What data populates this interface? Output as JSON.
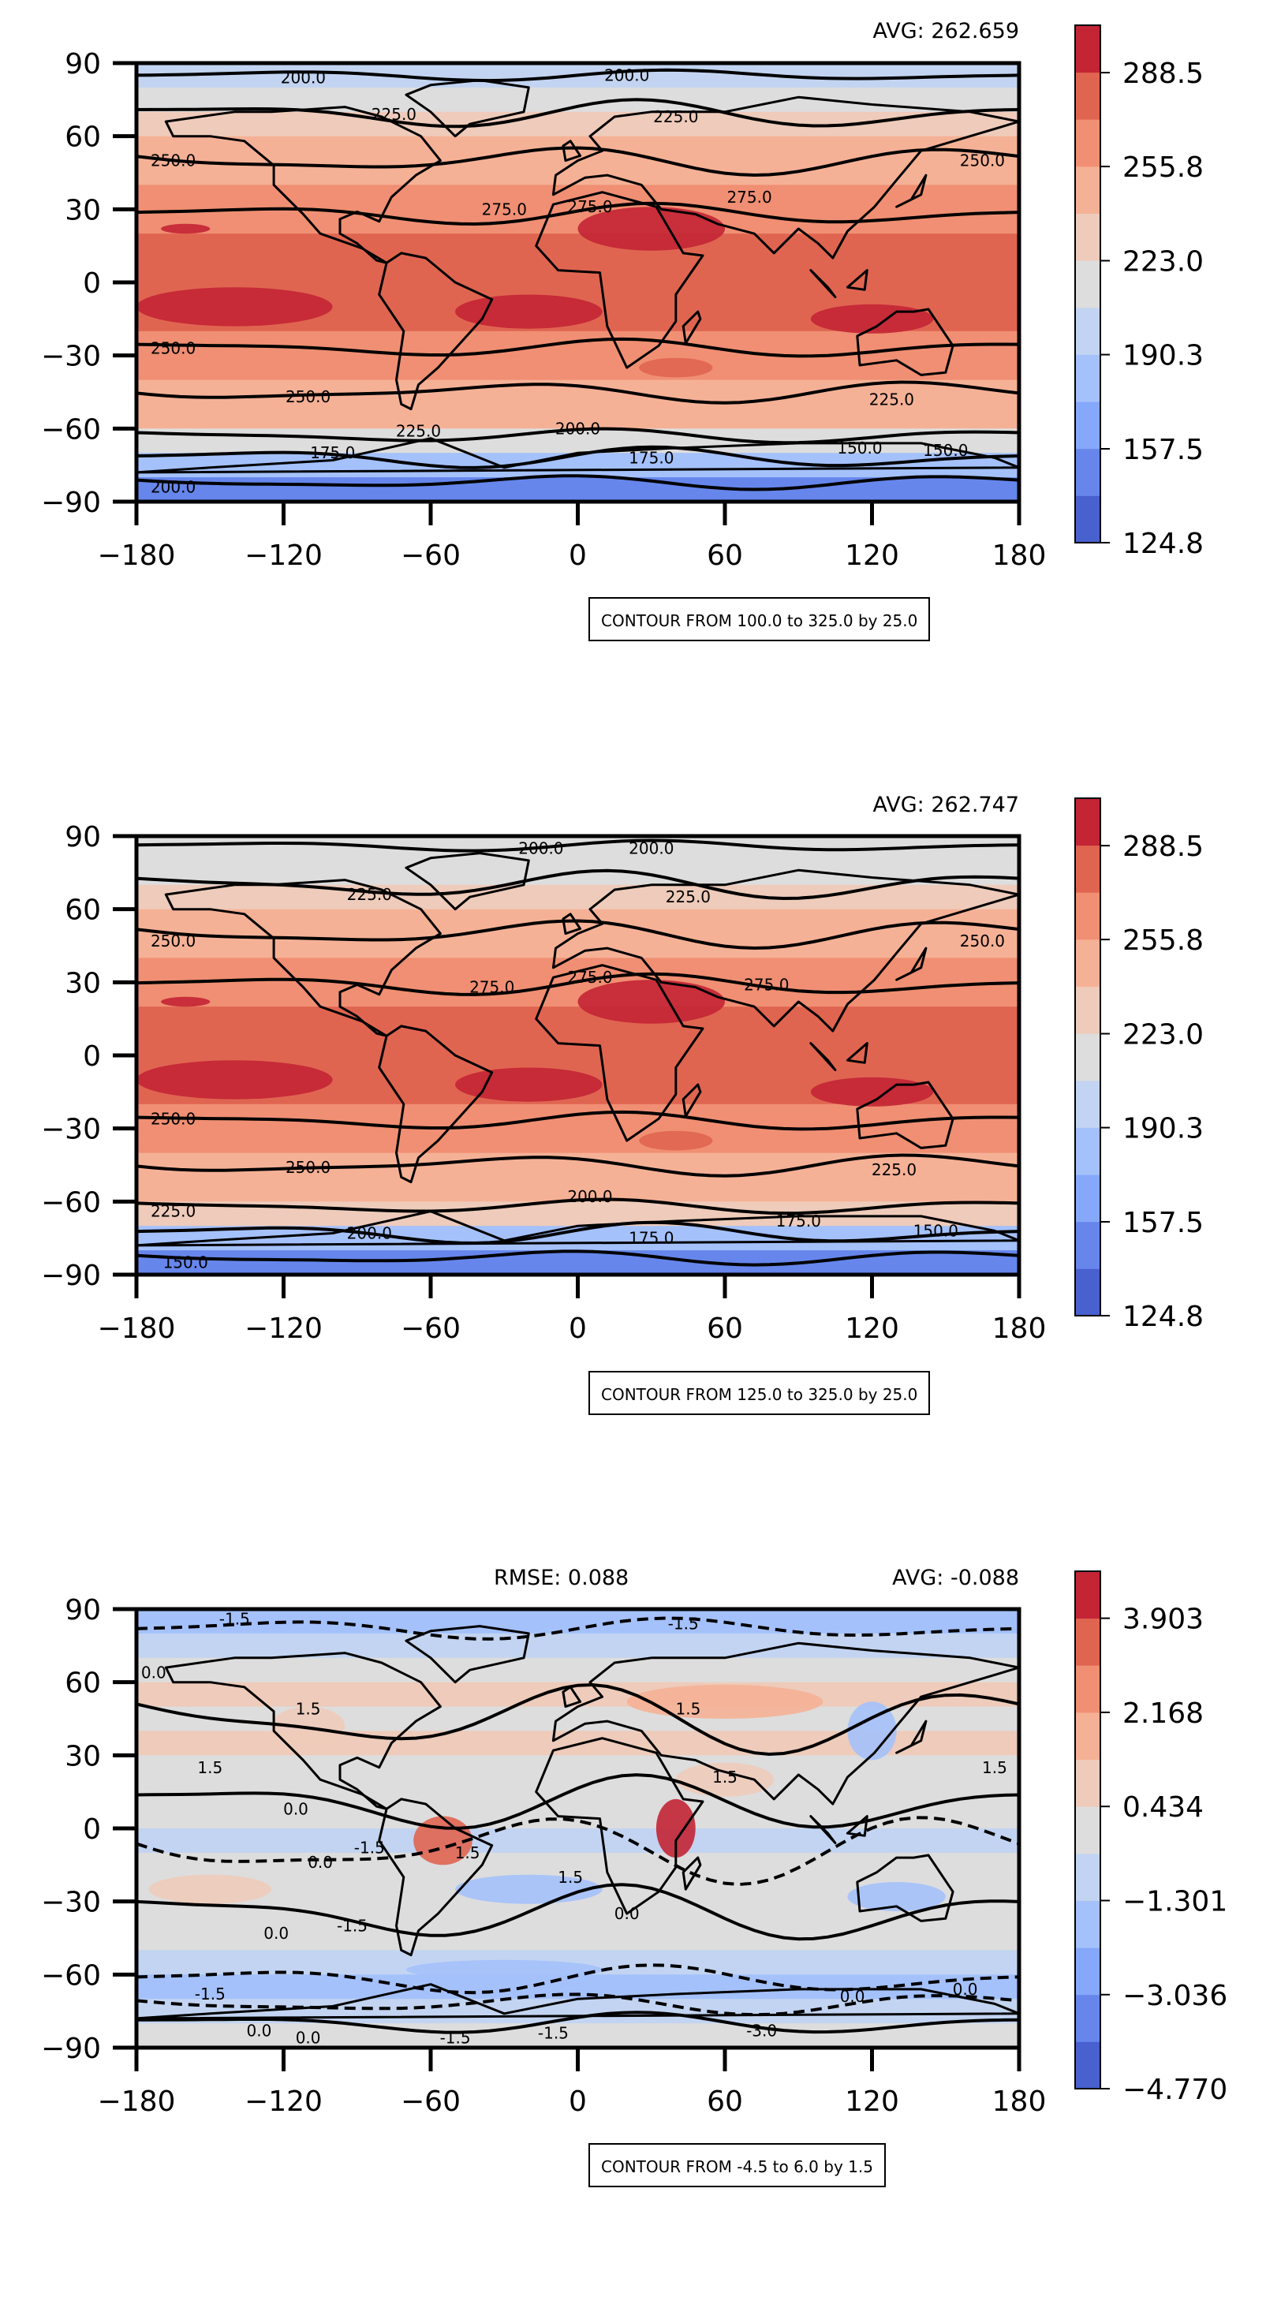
{
  "panels": [
    {
      "avg": "AVG: 262.659",
      "rmse": "",
      "contour_note": "CONTOUR FROM 100.0 to 325.0 by 25.0",
      "colorbar_ticks": [
        "288.5",
        "255.8",
        "223.0",
        "190.3",
        "157.5",
        "124.8"
      ],
      "contour_labels": [
        "200.0",
        "200.0",
        "225.0",
        "225.0",
        "250.0",
        "250.0",
        "275.0",
        "275.0",
        "275.0",
        "250.0",
        "250.0",
        "225.0",
        "225.0",
        "200.0",
        "175.0",
        "150.0",
        "200.0",
        "175.0",
        "150.0"
      ]
    },
    {
      "avg": "AVG: 262.747",
      "rmse": "",
      "contour_note": "CONTOUR FROM 125.0 to 325.0 by 25.0",
      "colorbar_ticks": [
        "288.5",
        "255.8",
        "223.0",
        "190.3",
        "157.5",
        "124.8"
      ],
      "contour_labels": [
        "200.0",
        "200.0",
        "225.0",
        "225.0",
        "250.0",
        "250.0",
        "275.0",
        "275.0",
        "275.0",
        "250.0",
        "250.0",
        "225.0",
        "225.0",
        "200.0",
        "200.0",
        "175.0",
        "150.0",
        "175.0",
        "150.0"
      ]
    },
    {
      "avg": "AVG: -0.088",
      "rmse": "RMSE: 0.088",
      "contour_note": "CONTOUR FROM -4.5 to 6.0 by 1.5",
      "colorbar_ticks": [
        "3.903",
        "2.168",
        "0.434",
        "−1.301",
        "−3.036",
        "−4.770"
      ],
      "contour_labels": [
        "-1.5",
        "-1.5",
        "0.0",
        "1.5",
        "1.5",
        "1.5",
        "1.5",
        "0.0",
        "0.0",
        "1.5",
        "-1.5",
        "1.5",
        "1.5",
        "0.0",
        "0.0",
        "-1.5",
        "-1.5",
        "0.0",
        "0.0",
        "-1.5",
        "-1.5",
        "-3.0",
        "0.0",
        "0.0"
      ]
    }
  ],
  "axes": {
    "xticks": [
      "−180",
      "−120",
      "−60",
      "0",
      "60",
      "120",
      "180"
    ],
    "yticks": [
      "90",
      "60",
      "30",
      "0",
      "−30",
      "−60",
      "−90"
    ]
  },
  "chart_data": [
    {
      "type": "heatmap",
      "title": "",
      "annotations": [
        "AVG: 262.659",
        "CONTOUR FROM 100.0 to 325.0 by 25.0"
      ],
      "xlim": [
        -180,
        180
      ],
      "ylim": [
        -90,
        90
      ],
      "x_ticks": [
        -180,
        -120,
        -60,
        0,
        60,
        120,
        180
      ],
      "y_ticks": [
        90,
        60,
        30,
        0,
        -30,
        -60,
        -90
      ],
      "zonal_profile": {
        "lat": [
          85,
          75,
          65,
          55,
          45,
          35,
          25,
          15,
          5,
          -5,
          -15,
          -25,
          -35,
          -45,
          -55,
          -65,
          -75,
          -85
        ],
        "value": [
          205,
          220,
          235,
          245,
          252,
          262,
          272,
          278,
          280,
          280,
          277,
          272,
          262,
          250,
          240,
          222,
          180,
          150
        ]
      },
      "colorbar": {
        "ticks": [
          288.5,
          255.8,
          223.0,
          190.3,
          157.5,
          124.8
        ],
        "range": [
          124.8,
          305
        ],
        "colormap": "coolwarm"
      },
      "contours": {
        "start": 100.0,
        "end": 325.0,
        "step": 25.0
      }
    },
    {
      "type": "heatmap",
      "title": "",
      "annotations": [
        "AVG: 262.747",
        "CONTOUR FROM 125.0 to 325.0 by 25.0"
      ],
      "xlim": [
        -180,
        180
      ],
      "ylim": [
        -90,
        90
      ],
      "x_ticks": [
        -180,
        -120,
        -60,
        0,
        60,
        120,
        180
      ],
      "y_ticks": [
        90,
        60,
        30,
        0,
        -30,
        -60,
        -90
      ],
      "zonal_profile": {
        "lat": [
          85,
          75,
          65,
          55,
          45,
          35,
          25,
          15,
          5,
          -5,
          -15,
          -25,
          -35,
          -45,
          -55,
          -65,
          -75,
          -85
        ],
        "value": [
          208,
          222,
          236,
          246,
          253,
          263,
          272,
          278,
          280,
          280,
          277,
          272,
          262,
          251,
          240,
          224,
          182,
          150
        ]
      },
      "colorbar": {
        "ticks": [
          288.5,
          255.8,
          223.0,
          190.3,
          157.5,
          124.8
        ],
        "range": [
          124.8,
          305
        ],
        "colormap": "coolwarm"
      },
      "contours": {
        "start": 125.0,
        "end": 325.0,
        "step": 25.0
      }
    },
    {
      "type": "heatmap",
      "title": "",
      "annotations": [
        "RMSE: 0.088",
        "AVG: -0.088",
        "CONTOUR FROM -4.5 to 6.0 by 1.5"
      ],
      "xlim": [
        -180,
        180
      ],
      "ylim": [
        -90,
        90
      ],
      "x_ticks": [
        -180,
        -120,
        -60,
        0,
        60,
        120,
        180
      ],
      "y_ticks": [
        90,
        60,
        30,
        0,
        -30,
        -60,
        -90
      ],
      "zonal_profile": {
        "lat": [
          85,
          75,
          65,
          55,
          45,
          35,
          25,
          15,
          5,
          -5,
          -15,
          -25,
          -35,
          -45,
          -55,
          -65,
          -75,
          -85
        ],
        "value": [
          -1.6,
          -0.8,
          -0.2,
          0.6,
          0.4,
          0.5,
          0.3,
          0.2,
          0.0,
          -0.6,
          -0.3,
          0.3,
          -0.2,
          -0.4,
          -0.6,
          -1.4,
          -0.8,
          0.2
        ]
      },
      "colorbar": {
        "ticks": [
          3.903,
          2.168,
          0.434,
          -1.301,
          -3.036,
          -4.77
        ],
        "range": [
          -4.77,
          4.77
        ],
        "colormap": "coolwarm"
      },
      "contours": {
        "start": -4.5,
        "end": 6.0,
        "step": 1.5
      }
    }
  ]
}
